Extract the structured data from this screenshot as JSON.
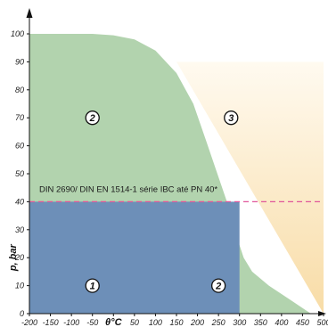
{
  "chart_data": {
    "type": "area",
    "title": "",
    "xlabel": "θ°C",
    "ylabel": "p, bar",
    "xlim": [
      -200,
      500
    ],
    "ylim": [
      0,
      100
    ],
    "x_ticks": [
      -200,
      -150,
      -100,
      -50,
      0,
      50,
      100,
      150,
      200,
      250,
      300,
      350,
      400,
      450,
      500
    ],
    "y_ticks": [
      0,
      10,
      20,
      30,
      40,
      50,
      60,
      70,
      80,
      90,
      100
    ],
    "grid": false,
    "annotation": "DIN 2690/ DIN EN 1514-1 série IBC até PN 40*",
    "threshold_pressure": 40,
    "regions": [
      {
        "label": "1",
        "color": "#6d8fb8",
        "boundary": [
          [
            -200,
            0
          ],
          [
            300,
            0
          ],
          [
            300,
            40
          ],
          [
            -200,
            40
          ]
        ],
        "label_point": [
          -50,
          10
        ]
      },
      {
        "label": "2",
        "color": "#b2d3ae",
        "boundary": [
          [
            -200,
            0
          ],
          [
            -200,
            100
          ],
          [
            -50,
            100
          ],
          [
            0,
            99.5
          ],
          [
            50,
            98
          ],
          [
            100,
            94
          ],
          [
            150,
            86
          ],
          [
            190,
            75
          ],
          [
            220,
            62
          ],
          [
            245,
            51
          ],
          [
            270,
            40
          ],
          [
            290,
            29
          ],
          [
            310,
            20
          ],
          [
            330,
            15
          ],
          [
            370,
            10
          ],
          [
            420,
            5
          ],
          [
            460,
            1
          ],
          [
            470,
            0
          ]
        ],
        "label_point": [
          -50,
          70
        ]
      },
      {
        "label": "2",
        "color": "#b2d3ae",
        "label_point": [
          250,
          10
        ]
      },
      {
        "label": "3",
        "color": "#f8dca6",
        "boundary": [
          [
            150,
            90
          ],
          [
            500,
            90
          ],
          [
            500,
            0
          ]
        ],
        "label_point": [
          280,
          70
        ]
      }
    ]
  },
  "colors": {
    "zone1": "#6d8fb8",
    "zone2": "#b2d3ae",
    "zone3_light": "#fffaf0",
    "zone3_dark": "#f8dca6",
    "dashed_line": "#e0559a"
  }
}
